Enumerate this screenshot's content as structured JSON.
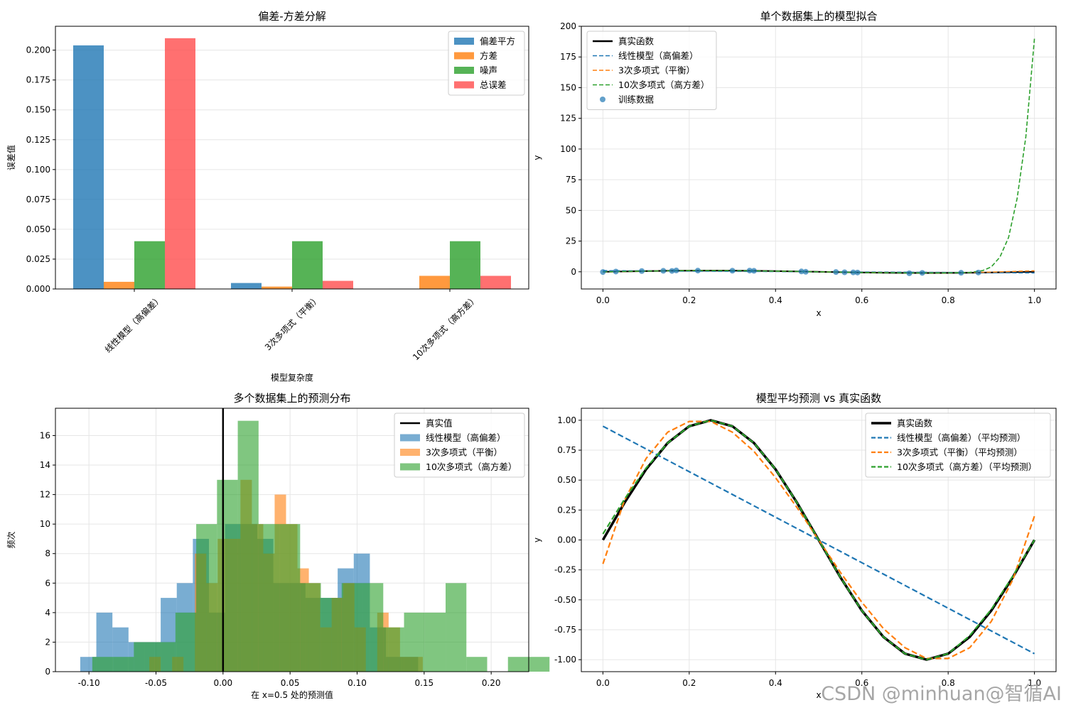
{
  "watermark": "CSDN @minhuan@智循AI",
  "chart_data": [
    {
      "type": "bar",
      "title": "偏差-方差分解",
      "xlabel": "模型复杂度",
      "ylabel": "误差值",
      "categories": [
        "线性模型（高偏差）",
        "3次多项式（平衡）",
        "10次多项式（高方差）"
      ],
      "series": [
        {
          "name": "偏差平方",
          "color": "#1f77b4",
          "values": [
            0.204,
            0.005,
            0.0003
          ]
        },
        {
          "name": "方差",
          "color": "#ff7f0e",
          "values": [
            0.006,
            0.002,
            0.011
          ]
        },
        {
          "name": "噪声",
          "color": "#2ca02c",
          "values": [
            0.04,
            0.04,
            0.04
          ]
        },
        {
          "name": "总误差",
          "color": "#ff4c4c",
          "values": [
            0.21,
            0.0068,
            0.011
          ]
        }
      ],
      "ylim": [
        0,
        0.22
      ],
      "yticks": [
        0.0,
        0.025,
        0.05,
        0.075,
        0.1,
        0.125,
        0.15,
        0.175,
        0.2
      ],
      "ytick_labels": [
        "0.000",
        "0.025",
        "0.050",
        "0.075",
        "0.100",
        "0.125",
        "0.150",
        "0.175",
        "0.200"
      ],
      "grid": true,
      "legend": "top-right"
    },
    {
      "type": "line",
      "title": "单个数据集上的模型拟合",
      "xlabel": "x",
      "ylabel": "y",
      "xlim": [
        -0.05,
        1.05
      ],
      "ylim": [
        -14,
        200
      ],
      "xticks": [
        0.0,
        0.2,
        0.4,
        0.6,
        0.8,
        1.0
      ],
      "xtick_labels": [
        "0.0",
        "0.2",
        "0.4",
        "0.6",
        "0.8",
        "1.0"
      ],
      "yticks": [
        0,
        25,
        50,
        75,
        100,
        125,
        150,
        175,
        200
      ],
      "ytick_labels": [
        "0",
        "25",
        "50",
        "75",
        "100",
        "125",
        "150",
        "175",
        "200"
      ],
      "grid": true,
      "legend": "top-left",
      "series": [
        {
          "name": "真实函数",
          "color": "#000000",
          "style": "solid"
        },
        {
          "name": "线性模型（高偏差）",
          "color": "#1f77b4",
          "style": "dashed"
        },
        {
          "name": "3次多项式（平衡）",
          "color": "#ff7f0e",
          "style": "dashed"
        },
        {
          "name": "10次多项式（高方差）",
          "color": "#2ca02c",
          "style": "dashed"
        },
        {
          "name": "训练数据",
          "color": "#1f77b4",
          "style": "scatter"
        }
      ],
      "true_function": {
        "x": [
          0,
          0.05,
          0.1,
          0.15,
          0.2,
          0.25,
          0.3,
          0.35,
          0.4,
          0.45,
          0.5,
          0.55,
          0.6,
          0.65,
          0.7,
          0.75,
          0.8,
          0.85,
          0.9,
          0.95,
          1.0
        ],
        "y": [
          0,
          0.31,
          0.59,
          0.81,
          0.95,
          1.0,
          0.95,
          0.81,
          0.59,
          0.31,
          0,
          -0.31,
          -0.59,
          -0.81,
          -0.95,
          -1.0,
          -0.95,
          -0.81,
          -0.59,
          -0.31,
          0
        ]
      },
      "linear_fit": {
        "x": [
          0,
          1.0
        ],
        "y": [
          0.9,
          -0.9
        ]
      },
      "poly3_fit": {
        "x": [
          0,
          0.1,
          0.2,
          0.3,
          0.4,
          0.5,
          0.6,
          0.7,
          0.8,
          0.9,
          1.0
        ],
        "y": [
          -0.1,
          0.6,
          1.0,
          0.9,
          0.5,
          0.0,
          -0.5,
          -0.9,
          -0.95,
          -0.3,
          0.8
        ]
      },
      "poly10_fit": {
        "x": [
          0,
          0.1,
          0.2,
          0.3,
          0.4,
          0.5,
          0.6,
          0.7,
          0.8,
          0.85,
          0.88,
          0.9,
          0.92,
          0.94,
          0.96,
          0.98,
          1.0
        ],
        "y": [
          0,
          0.6,
          1.0,
          0.9,
          0.6,
          0,
          -0.6,
          -0.9,
          -0.9,
          -0.5,
          1,
          4,
          12,
          28,
          60,
          110,
          190
        ]
      },
      "training_points": {
        "x": [
          0.0,
          0.03,
          0.09,
          0.14,
          0.16,
          0.17,
          0.22,
          0.3,
          0.34,
          0.35,
          0.46,
          0.47,
          0.54,
          0.56,
          0.58,
          0.59,
          0.71,
          0.74,
          0.83,
          0.87
        ],
        "y": [
          -0.2,
          0.2,
          0.6,
          0.8,
          0.7,
          1.1,
          1.0,
          0.9,
          1.0,
          0.8,
          0.3,
          0.0,
          -0.2,
          -0.4,
          -0.5,
          -0.6,
          -1.2,
          -0.9,
          -0.8,
          -0.6
        ]
      }
    },
    {
      "type": "histogram",
      "title": "多个数据集上的预测分布",
      "xlabel": "在 x=0.5 处的预测值",
      "ylabel": "频次",
      "xlim": [
        -0.125,
        0.228
      ],
      "ylim": [
        0,
        17.85
      ],
      "xticks": [
        -0.1,
        -0.05,
        0.0,
        0.05,
        0.1,
        0.15,
        0.2
      ],
      "xtick_labels": [
        "-0.10",
        "-0.05",
        "0.00",
        "0.05",
        "0.10",
        "0.15",
        "0.20"
      ],
      "yticks": [
        0,
        2,
        4,
        6,
        8,
        10,
        12,
        14,
        16
      ],
      "ytick_labels": [
        "0",
        "2",
        "4",
        "6",
        "8",
        "10",
        "12",
        "14",
        "16"
      ],
      "grid": true,
      "legend": "top-right",
      "true_value": {
        "name": "真实值",
        "x": 0.0,
        "color": "#000000"
      },
      "series": [
        {
          "name": "线性模型（高偏差）",
          "color": "#1f77b4",
          "bin_start": -0.1065,
          "bin_width": 0.012,
          "counts": [
            1,
            4,
            3,
            2,
            2,
            5,
            6,
            9,
            4,
            10,
            10,
            9,
            6,
            6,
            5,
            5,
            7,
            8,
            3,
            1,
            1
          ]
        },
        {
          "name": "3次多项式（平衡）",
          "color": "#ff7f0e",
          "bin_start": -0.055,
          "bin_width": 0.0085,
          "counts": [
            1,
            0,
            1,
            0,
            8,
            6,
            9,
            9,
            13,
            10,
            8,
            12,
            10,
            7,
            6,
            3,
            5,
            6,
            3,
            0,
            4,
            3,
            1,
            1
          ]
        },
        {
          "name": "10次多项式（高方差）",
          "color": "#2ca02c",
          "bin_start": -0.0975,
          "bin_width": 0.0155,
          "counts": [
            1,
            1,
            2,
            2,
            4,
            10,
            13,
            17,
            10,
            10,
            6,
            5,
            6,
            6,
            3,
            4,
            4,
            6,
            1,
            0,
            1,
            1
          ]
        }
      ]
    },
    {
      "type": "line",
      "title": "模型平均预测 vs 真实函数",
      "xlabel": "x",
      "ylabel": "y",
      "xlim": [
        -0.05,
        1.05
      ],
      "ylim": [
        -1.1,
        1.1
      ],
      "xticks": [
        0.0,
        0.2,
        0.4,
        0.6,
        0.8,
        1.0
      ],
      "xtick_labels": [
        "0.0",
        "0.2",
        "0.4",
        "0.6",
        "0.8",
        "1.0"
      ],
      "yticks": [
        -1.0,
        -0.75,
        -0.5,
        -0.25,
        0.0,
        0.25,
        0.5,
        0.75,
        1.0
      ],
      "ytick_labels": [
        "-1.00",
        "-0.75",
        "-0.50",
        "-0.25",
        "0.00",
        "0.25",
        "0.50",
        "0.75",
        "1.00"
      ],
      "grid": true,
      "legend": "top-right",
      "series": [
        {
          "name": "真实函数",
          "color": "#000000",
          "style": "solid"
        },
        {
          "name": "线性模型（高偏差）（平均预测）",
          "color": "#1f77b4",
          "style": "dashed"
        },
        {
          "name": "3次多项式（平衡）（平均预测）",
          "color": "#ff7f0e",
          "style": "dashed"
        },
        {
          "name": "10次多项式（高方差）（平均预测）",
          "color": "#2ca02c",
          "style": "dashed"
        }
      ],
      "linear_mean": {
        "x": [
          0,
          1.0
        ],
        "y": [
          0.95,
          -0.95
        ]
      },
      "poly3_mean": {
        "x": [
          0,
          0.05,
          0.1,
          0.15,
          0.2,
          0.25,
          0.3,
          0.35,
          0.4,
          0.45,
          0.5,
          0.55,
          0.6,
          0.65,
          0.7,
          0.75,
          0.8,
          0.85,
          0.9,
          0.95,
          1.0
        ],
        "y": [
          -0.2,
          0.33,
          0.68,
          0.9,
          0.99,
          0.99,
          0.9,
          0.74,
          0.52,
          0.27,
          0.0,
          -0.27,
          -0.52,
          -0.74,
          -0.9,
          -0.99,
          -0.99,
          -0.9,
          -0.68,
          -0.33,
          0.2
        ]
      },
      "poly10_mean": {
        "x": [
          0,
          0.05,
          0.1,
          0.15,
          0.2,
          0.25,
          0.3,
          0.35,
          0.4,
          0.45,
          0.5,
          0.55,
          0.6,
          0.65,
          0.7,
          0.75,
          0.8,
          0.85,
          0.9,
          0.95,
          1.0
        ],
        "y": [
          0.05,
          0.34,
          0.6,
          0.81,
          0.95,
          1.0,
          0.95,
          0.81,
          0.59,
          0.31,
          0,
          -0.31,
          -0.59,
          -0.81,
          -0.95,
          -1.0,
          -0.95,
          -0.8,
          -0.58,
          -0.3,
          0
        ]
      },
      "true_function": {
        "x": [
          0,
          0.05,
          0.1,
          0.15,
          0.2,
          0.25,
          0.3,
          0.35,
          0.4,
          0.45,
          0.5,
          0.55,
          0.6,
          0.65,
          0.7,
          0.75,
          0.8,
          0.85,
          0.9,
          0.95,
          1.0
        ],
        "y": [
          0,
          0.31,
          0.59,
          0.81,
          0.95,
          1.0,
          0.95,
          0.81,
          0.59,
          0.31,
          0,
          -0.31,
          -0.59,
          -0.81,
          -0.95,
          -1.0,
          -0.95,
          -0.81,
          -0.59,
          -0.31,
          0
        ]
      }
    }
  ]
}
